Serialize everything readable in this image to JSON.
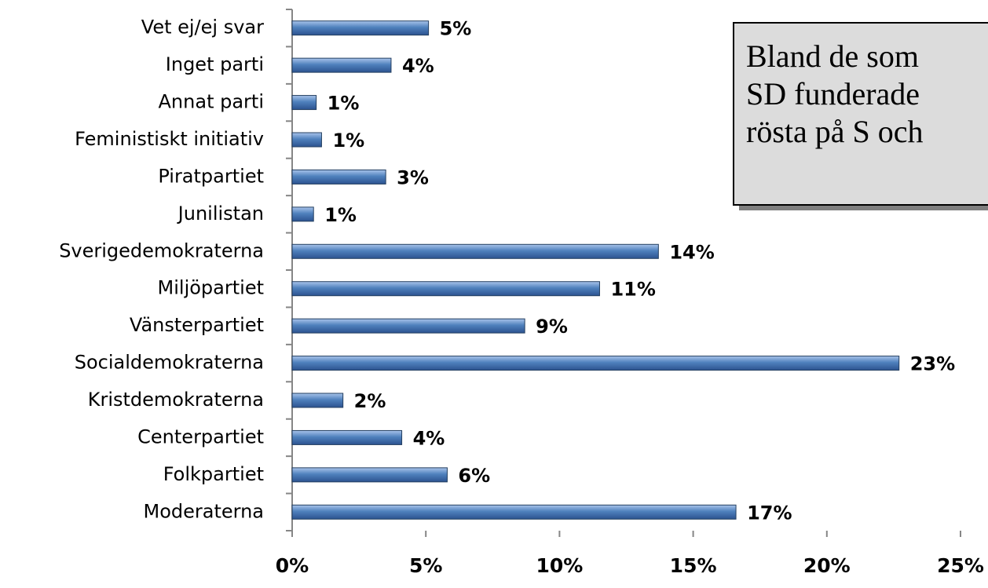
{
  "chart_data": {
    "type": "bar",
    "orientation": "horizontal",
    "categories": [
      "Vet ej/ej svar",
      "Inget parti",
      "Annat parti",
      "Feministiskt initiativ",
      "Piratpartiet",
      "Junilistan",
      "Sverigedemokraterna",
      "Miljöpartiet",
      "Vänsterpartiet",
      "Socialdemokraterna",
      "Kristdemokraterna",
      "Centerpartiet",
      "Folkpartiet",
      "Moderaterna"
    ],
    "values": [
      5.1,
      3.7,
      0.9,
      1.1,
      3.5,
      0.8,
      13.7,
      11.5,
      8.7,
      22.7,
      1.9,
      4.1,
      5.8,
      16.6
    ],
    "value_labels": [
      "5%",
      "4%",
      "1%",
      "1%",
      "3%",
      "1%",
      "14%",
      "11%",
      "9%",
      "23%",
      "2%",
      "4%",
      "6%",
      "17%"
    ],
    "color": "#4f81bd",
    "xlim": [
      0,
      25
    ],
    "xticks": [
      {
        "value": 0,
        "label": "0%"
      },
      {
        "value": 5,
        "label": "5%"
      },
      {
        "value": 10,
        "label": "10%"
      },
      {
        "value": 15,
        "label": "15%"
      },
      {
        "value": 20,
        "label": "20%"
      },
      {
        "value": 25,
        "label": "25%"
      }
    ],
    "annotation": [
      "Bland de som",
      "SD funderade",
      "rösta på S och"
    ]
  }
}
